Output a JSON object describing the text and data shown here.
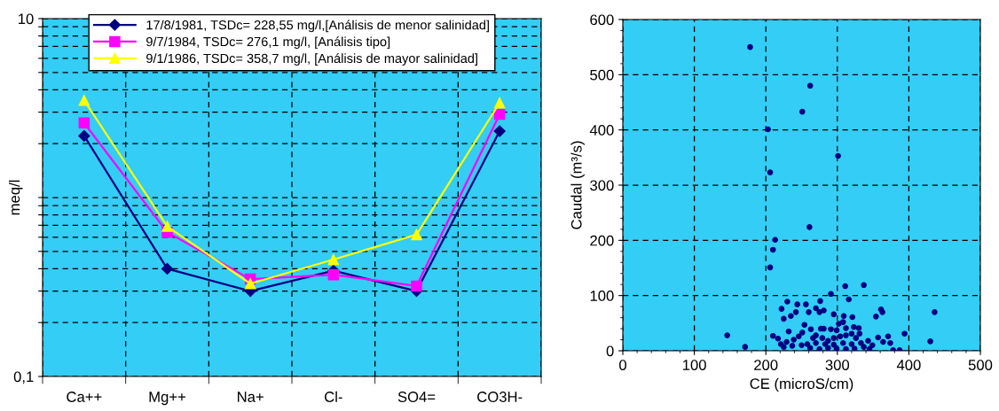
{
  "chart_data": [
    {
      "type": "line",
      "ylabel": "meq/l",
      "categories": [
        "Ca++",
        "Mg++",
        "Na+",
        "Cl-",
        "SO4=",
        "CO3H-"
      ],
      "log": "y",
      "ylim": [
        0.1,
        10
      ],
      "yticks": [
        {
          "value": 0.1,
          "label": "0,1"
        },
        {
          "value": 0.2,
          "label": null
        },
        {
          "value": 0.3,
          "label": null
        },
        {
          "value": 0.4,
          "label": null
        },
        {
          "value": 0.5,
          "label": null
        },
        {
          "value": 0.6,
          "label": null
        },
        {
          "value": 0.7,
          "label": null
        },
        {
          "value": 0.8,
          "label": null
        },
        {
          "value": 0.9,
          "label": null
        },
        {
          "value": 1,
          "label": null
        },
        {
          "value": 2,
          "label": null
        },
        {
          "value": 3,
          "label": null
        },
        {
          "value": 4,
          "label": null
        },
        {
          "value": 5,
          "label": null
        },
        {
          "value": 6,
          "label": null
        },
        {
          "value": 7,
          "label": null
        },
        {
          "value": 8,
          "label": null
        },
        {
          "value": 9,
          "label": null
        },
        10
      ],
      "grid": true,
      "legend": "top",
      "series": [
        {
          "name": "17/8/1981, TSDc= 228,55 mg/l,[Análisis de menor salinidad]",
          "color": "#000080",
          "marker": "diamond",
          "values": [
            2.21,
            0.4,
            0.3,
            0.39,
            0.3,
            2.35
          ]
        },
        {
          "name": "9/7/1984, TSDc= 276,1 mg/l, [Análisis tipo]",
          "color": "#ff00ff",
          "marker": "square",
          "values": [
            2.61,
            0.64,
            0.35,
            0.37,
            0.32,
            2.92
          ]
        },
        {
          "name": "9/1/1986, TSDc= 358,7 mg/l, [Análisis de mayor salinidad]",
          "color": "#ffff00",
          "marker": "triangle",
          "values": [
            3.49,
            0.69,
            0.33,
            0.45,
            0.62,
            3.38
          ]
        }
      ]
    },
    {
      "type": "scatter",
      "xlabel": "CE (microS/cm)",
      "ylabel": "Caudal (m³/s)",
      "xlim": [
        0,
        500
      ],
      "xticks": [
        0,
        100,
        200,
        300,
        400,
        500
      ],
      "ylim": [
        0,
        600
      ],
      "yticks": [
        0,
        100,
        200,
        300,
        400,
        500,
        600
      ],
      "grid": true,
      "marker": "circle",
      "series": [
        {
          "color": "#000080",
          "x": [
            178,
            262,
            251,
            203,
            301,
            206,
            261,
            213,
            210,
            206,
            146,
            171,
            311,
            337,
            291,
            316,
            230,
            244,
            256,
            276,
            222,
            242,
            235,
            225,
            260,
            270,
            275,
            281,
            295,
            309,
            321,
            361,
            363,
            354,
            436,
            430,
            394,
            371,
            374,
            364,
            357,
            378,
            387,
            254,
            263,
            232,
            210,
            217,
            302,
            308,
            312,
            323,
            330,
            277,
            281,
            291,
            299,
            251,
            331,
            221,
            229,
            239,
            246,
            266,
            270,
            279,
            287,
            295,
            304,
            312,
            320,
            326,
            343,
            349,
            337,
            324,
            312,
            299,
            287,
            275,
            262,
            250,
            237,
            225,
            258,
            270,
            283,
            295,
            308,
            320,
            333,
            345
          ],
          "values": [
            550,
            480,
            433,
            401,
            353,
            323,
            224,
            201,
            183,
            151,
            28,
            7,
            117,
            119,
            103,
            93,
            89,
            84,
            84,
            90,
            76,
            70,
            63,
            58,
            70,
            77,
            70,
            73,
            66,
            63,
            61,
            75,
            70,
            62,
            70,
            17,
            31,
            26,
            14,
            16,
            24,
            1,
            1,
            47,
            39,
            35,
            27,
            22,
            49,
            52,
            41,
            43,
            41,
            40,
            40,
            39,
            37,
            33,
            31,
            12,
            16,
            20,
            26,
            23,
            28,
            23,
            18,
            23,
            26,
            28,
            31,
            23,
            18,
            10,
            7,
            4,
            3,
            4,
            5,
            3,
            5,
            10,
            9,
            7,
            12,
            14,
            12,
            11,
            14,
            12,
            14,
            3
          ]
        }
      ]
    }
  ]
}
